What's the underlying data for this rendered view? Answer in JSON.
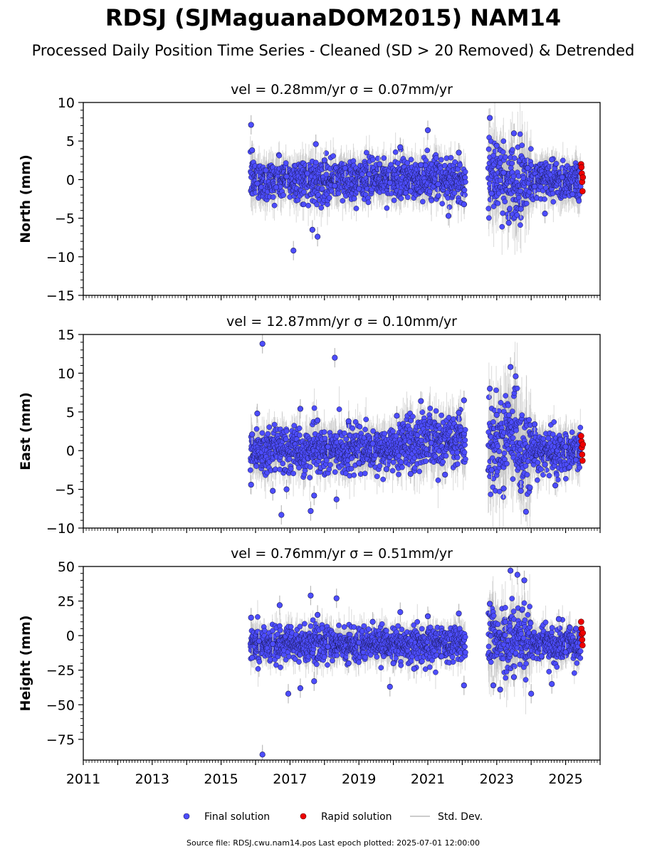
{
  "figure": {
    "title": "RDSJ (SJMaguanaDOM2015) NAM14",
    "subtitle": "Processed Daily Position Time Series - Cleaned (SD > 20 Removed) & Detrended",
    "source": "Source file: RDSJ.cwu.nam14.pos  Last epoch plotted: 2025-07-01 12:00:00"
  },
  "colors": {
    "final": "#4d4dff",
    "rapid": "#ee0000",
    "stddev": "#bbbbbb",
    "edge": "#1a1a55"
  },
  "legend": [
    {
      "label": "Final solution",
      "kind": "final"
    },
    {
      "label": "Rapid solution",
      "kind": "rapid"
    },
    {
      "label": "Std. Dev.",
      "kind": "stddev"
    }
  ],
  "chart_data": [
    {
      "type": "scatter",
      "title": "vel = 0.28mm/yr   σ = 0.07mm/yr",
      "ylabel": "North (mm)",
      "xlim": [
        2011,
        2026
      ],
      "ylim": [
        -15,
        10
      ],
      "yticks": [
        10,
        5,
        0,
        -5,
        -10,
        -15
      ],
      "ytick_labels": [
        "10",
        "5",
        "0",
        "−5",
        "−10",
        "−15"
      ],
      "series": [
        {
          "kind": "final",
          "x": [
            2015.87,
            2015.9,
            2016.05,
            2016.3,
            2016.6,
            2016.9,
            2017.1,
            2017.5,
            2017.65,
            2017.75,
            2017.8,
            2018.0,
            2018.3,
            2018.6,
            2019.0,
            2019.3,
            2019.6,
            2019.9,
            2020.2,
            2020.5,
            2020.8,
            2021.0,
            2021.3,
            2021.6,
            2021.9,
            2022.05,
            2022.8,
            2022.85,
            2023.0,
            2023.2,
            2023.35,
            2023.5,
            2023.7,
            2023.9,
            2024.1,
            2024.4,
            2024.6,
            2024.9,
            2025.2,
            2025.4
          ],
          "y": [
            7.1,
            3.8,
            -0.5,
            1.2,
            -1.0,
            0.4,
            -9.2,
            0.8,
            -6.5,
            4.6,
            -7.4,
            2.5,
            -0.8,
            1.5,
            -1.2,
            0.7,
            2.0,
            -0.4,
            4.2,
            -1.5,
            1.9,
            6.4,
            -0.6,
            -4.7,
            3.5,
            -3.2,
            8.0,
            -1.8,
            4.4,
            0.9,
            -5.6,
            6.0,
            -3.8,
            1.5,
            -0.9,
            -4.4,
            2.6,
            0.3,
            -1.9,
            1.1
          ]
        },
        {
          "kind": "rapid",
          "x": [
            2025.45,
            2025.46,
            2025.47,
            2025.48,
            2025.49,
            2025.5
          ],
          "y": [
            2.0,
            1.6,
            0.8,
            -0.3,
            -1.5,
            0.3
          ]
        }
      ]
    },
    {
      "type": "scatter",
      "title": "vel = 12.87mm/yr   σ = 0.10mm/yr",
      "ylabel": "East (mm)",
      "xlim": [
        2011,
        2026
      ],
      "ylim": [
        -10,
        15
      ],
      "yticks": [
        15,
        10,
        5,
        0,
        -5,
        -10
      ],
      "ytick_labels": [
        "15",
        "10",
        "5",
        "0",
        "−5",
        "−10"
      ],
      "series": [
        {
          "kind": "final",
          "x": [
            2015.87,
            2015.9,
            2016.05,
            2016.2,
            2016.5,
            2016.75,
            2016.9,
            2017.3,
            2017.6,
            2017.7,
            2017.8,
            2018.1,
            2018.3,
            2018.35,
            2018.7,
            2019.0,
            2019.4,
            2019.8,
            2020.1,
            2020.5,
            2020.8,
            2021.1,
            2021.5,
            2021.9,
            2022.05,
            2022.8,
            2022.85,
            2023.0,
            2023.2,
            2023.4,
            2023.55,
            2023.7,
            2023.85,
            2024.1,
            2024.4,
            2024.7,
            2025.0,
            2025.3
          ],
          "y": [
            -4.4,
            2.1,
            4.8,
            13.8,
            -5.2,
            -8.3,
            -5.0,
            5.4,
            -7.8,
            -5.8,
            3.9,
            0.5,
            12.0,
            -6.3,
            3.8,
            -1.6,
            0.9,
            -2.4,
            4.5,
            -3.0,
            6.4,
            1.0,
            -3.1,
            4.9,
            6.5,
            8.0,
            -2.5,
            4.6,
            -4.9,
            10.8,
            9.6,
            -5.2,
            -7.9,
            3.4,
            -1.8,
            -4.5,
            0.5,
            -1.2
          ]
        },
        {
          "kind": "rapid",
          "x": [
            2025.45,
            2025.46,
            2025.47,
            2025.48,
            2025.49,
            2025.5
          ],
          "y": [
            1.9,
            1.2,
            0.4,
            -0.5,
            -1.3,
            0.8
          ]
        }
      ]
    },
    {
      "type": "scatter",
      "title": "vel = 0.76mm/yr   σ = 0.51mm/yr",
      "ylabel": "Height (mm)",
      "xlabel": "",
      "xlim": [
        2011,
        2026
      ],
      "ylim": [
        -90,
        50
      ],
      "yticks": [
        50,
        25,
        0,
        -25,
        -50,
        -75
      ],
      "ytick_labels": [
        "50",
        "25",
        "0",
        "−25",
        "−50",
        "−75"
      ],
      "xticks": [
        2011,
        2013,
        2015,
        2017,
        2019,
        2021,
        2023,
        2025
      ],
      "xtick_labels": [
        "2011",
        "2013",
        "2015",
        "2017",
        "2019",
        "2021",
        "2023",
        "2025"
      ],
      "series": [
        {
          "kind": "final",
          "x": [
            2015.87,
            2015.9,
            2016.1,
            2016.2,
            2016.5,
            2016.7,
            2016.95,
            2017.3,
            2017.6,
            2017.7,
            2017.8,
            2018.1,
            2018.35,
            2018.7,
            2019.0,
            2019.4,
            2019.9,
            2020.0,
            2020.2,
            2020.6,
            2021.0,
            2021.4,
            2021.9,
            2022.05,
            2022.8,
            2022.9,
            2023.1,
            2023.25,
            2023.4,
            2023.5,
            2023.6,
            2023.8,
            2024.0,
            2024.3,
            2024.6,
            2024.8,
            2025.0,
            2025.3
          ],
          "y": [
            13,
            -16,
            -4,
            -86,
            -6,
            22,
            -42,
            -38,
            29,
            -33,
            15,
            -8,
            27,
            -20,
            -5,
            10,
            -37,
            -20,
            17,
            -24,
            14,
            -15,
            16,
            -36,
            23,
            -36,
            -39,
            10,
            47,
            -30,
            44,
            40,
            -42,
            -15,
            -35,
            12,
            -12,
            5
          ]
        },
        {
          "kind": "rapid",
          "x": [
            2025.45,
            2025.46,
            2025.47,
            2025.48,
            2025.49,
            2025.5
          ],
          "y": [
            10,
            5,
            1,
            -3,
            -7,
            2
          ]
        }
      ]
    }
  ]
}
